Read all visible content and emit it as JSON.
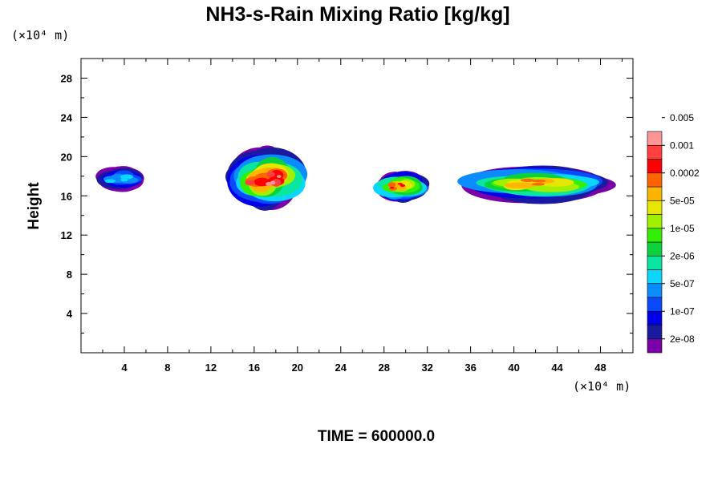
{
  "chart_data": {
    "type": "heatmap",
    "title": "NH3-s-Rain Mixing Ratio [kg/kg]",
    "ylabel": "Height",
    "x_unit_label": "(×10⁴ m)",
    "y_unit_label": "(×10⁴ m)",
    "time_label": "TIME = 600000.0",
    "xlim": [
      0,
      51
    ],
    "ylim": [
      0,
      30
    ],
    "x_ticks": [
      "4",
      "8",
      "12",
      "16",
      "20",
      "24",
      "28",
      "32",
      "36",
      "40",
      "44",
      "48"
    ],
    "y_ticks": [
      "4",
      "8",
      "12",
      "16",
      "20",
      "24",
      "28"
    ],
    "colorbar": {
      "colors": [
        "#7a00a8",
        "#1a1aa0",
        "#0000e6",
        "#0a4aff",
        "#0a8cff",
        "#0ad6ff",
        "#0ae6a0",
        "#0ad23c",
        "#32f000",
        "#a0f000",
        "#e6e600",
        "#ffb400",
        "#ff6400",
        "#ff0000",
        "#ff4040",
        "#ff9696"
      ],
      "labels": [
        "2e-08",
        "1e-07",
        "5e-07",
        "2e-06",
        "1e-05",
        "5e-05",
        "0.0002",
        "0.001",
        "0.005"
      ]
    },
    "cloud_regions": [
      {
        "x": [
          0,
          7
        ],
        "y": [
          16.5,
          19
        ],
        "peak_level": 5
      },
      {
        "x": [
          12,
          22
        ],
        "y": [
          15,
          20.5
        ],
        "peak_level": 15
      },
      {
        "x": [
          26,
          33
        ],
        "y": [
          15.5,
          18.5
        ],
        "peak_level": 13
      },
      {
        "x": [
          33,
          51
        ],
        "y": [
          15.5,
          19
        ],
        "peak_level": 12
      }
    ]
  }
}
